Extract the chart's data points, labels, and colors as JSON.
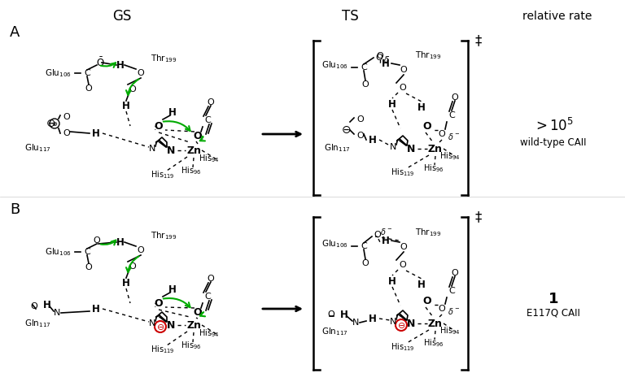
{
  "bg_color": "#ffffff",
  "text_color": "#000000",
  "green_color": "#00aa00",
  "figsize": [
    7.68,
    4.59
  ],
  "dpi": 100,
  "title_GS": "GS",
  "title_TS": "TS",
  "title_rate": "relative rate",
  "rate_A": ">10",
  "rate_A_exp": "5",
  "rate_A_label": "wild-type CAII",
  "rate_B": "1",
  "rate_B_label": "E117Q CAII"
}
